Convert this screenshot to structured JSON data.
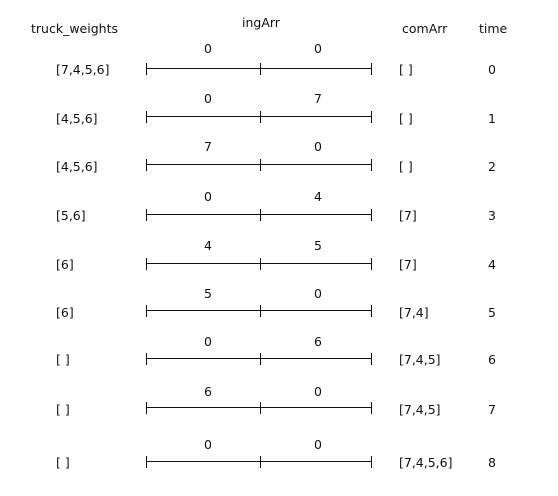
{
  "headers": {
    "truck_weights": "truck_weights",
    "ingArr": "ingArr",
    "comArr": "comArr",
    "time": "time"
  },
  "rows": [
    {
      "truck_weights": "[7,4,5,6]",
      "ing": [
        "0",
        "0"
      ],
      "comArr": "[ ]",
      "time": "0"
    },
    {
      "truck_weights": "[4,5,6]",
      "ing": [
        "0",
        "7"
      ],
      "comArr": "[ ]",
      "time": "1"
    },
    {
      "truck_weights": "[4,5,6]",
      "ing": [
        "7",
        "0"
      ],
      "comArr": "[ ]",
      "time": "2"
    },
    {
      "truck_weights": "[5,6]",
      "ing": [
        "0",
        "4"
      ],
      "comArr": "[7]",
      "time": "3"
    },
    {
      "truck_weights": "[6]",
      "ing": [
        "4",
        "5"
      ],
      "comArr": "[7]",
      "time": "4"
    },
    {
      "truck_weights": "[6]",
      "ing": [
        "5",
        "0"
      ],
      "comArr": "[7,4]",
      "time": "5"
    },
    {
      "truck_weights": "[ ]",
      "ing": [
        "0",
        "6"
      ],
      "comArr": "[7,4,5]",
      "time": "6"
    },
    {
      "truck_weights": "[ ]",
      "ing": [
        "6",
        "0"
      ],
      "comArr": "[7,4,5]",
      "time": "7"
    },
    {
      "truck_weights": "[ ]",
      "ing": [
        "0",
        "0"
      ],
      "comArr": "[7,4,5,6]",
      "time": "8"
    }
  ]
}
